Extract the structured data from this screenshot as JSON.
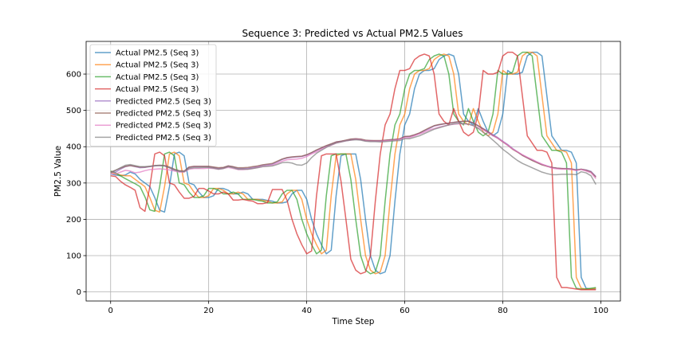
{
  "chart_data": {
    "type": "line",
    "title": "Sequence 3: Predicted vs Actual PM2.5 Values",
    "xlabel": "Time Step",
    "ylabel": "PM2.5 Value",
    "xlim": [
      -5,
      104
    ],
    "ylim": [
      -25,
      690
    ],
    "xticks": [
      0,
      20,
      40,
      60,
      80,
      100
    ],
    "yticks": [
      0,
      100,
      200,
      300,
      400,
      500,
      600
    ],
    "grid": true,
    "legend_position": "top-left",
    "series": [
      {
        "name": "Actual PM2.5 (Seq 3)",
        "color": "#1f77b4",
        "y": [
          325,
          322,
          320,
          322,
          330,
          325,
          310,
          300,
          290,
          260,
          225,
          220,
          290,
          380,
          385,
          375,
          300,
          295,
          275,
          260,
          260,
          265,
          285,
          285,
          280,
          270,
          270,
          275,
          270,
          255,
          255,
          255,
          252,
          250,
          245,
          245,
          248,
          270,
          280,
          280,
          255,
          200,
          160,
          130,
          105,
          115,
          265,
          375,
          380,
          380,
          380,
          310,
          200,
          100,
          60,
          50,
          55,
          100,
          250,
          380,
          460,
          490,
          560,
          600,
          610,
          610,
          615,
          640,
          650,
          655,
          650,
          600,
          490,
          470,
          460,
          505,
          470,
          440,
          430,
          440,
          490,
          610,
          600,
          600,
          605,
          650,
          660,
          660,
          650,
          540,
          430,
          410,
          390,
          390,
          385,
          355,
          40,
          10,
          8,
          8
        ]
      },
      {
        "name": "Actual PM2.5 (Seq 3)",
        "color": "#ff7f0e",
        "y": [
          330,
          325,
          322,
          320,
          320,
          310,
          300,
          290,
          260,
          225,
          220,
          290,
          380,
          385,
          375,
          300,
          295,
          275,
          260,
          260,
          265,
          285,
          285,
          280,
          270,
          270,
          275,
          270,
          255,
          255,
          255,
          252,
          250,
          245,
          245,
          248,
          270,
          280,
          280,
          255,
          200,
          160,
          130,
          105,
          115,
          265,
          375,
          380,
          380,
          380,
          310,
          200,
          100,
          60,
          50,
          55,
          100,
          250,
          380,
          460,
          490,
          560,
          600,
          610,
          610,
          615,
          640,
          650,
          655,
          650,
          600,
          490,
          470,
          460,
          505,
          470,
          440,
          430,
          440,
          490,
          610,
          600,
          600,
          605,
          650,
          660,
          660,
          650,
          540,
          430,
          410,
          390,
          390,
          385,
          355,
          40,
          10,
          8,
          8,
          10
        ]
      },
      {
        "name": "Actual PM2.5 (Seq 3)",
        "color": "#2ca02c",
        "y": [
          333,
          328,
          320,
          312,
          305,
          298,
          290,
          262,
          226,
          222,
          290,
          380,
          385,
          375,
          300,
          295,
          275,
          260,
          260,
          265,
          285,
          285,
          280,
          270,
          270,
          275,
          270,
          255,
          255,
          255,
          252,
          250,
          245,
          245,
          248,
          270,
          280,
          280,
          255,
          200,
          160,
          130,
          105,
          115,
          265,
          375,
          380,
          380,
          380,
          310,
          200,
          100,
          60,
          50,
          55,
          100,
          250,
          380,
          460,
          490,
          560,
          600,
          610,
          610,
          615,
          640,
          650,
          655,
          650,
          600,
          490,
          470,
          460,
          505,
          470,
          440,
          430,
          440,
          490,
          610,
          600,
          600,
          605,
          650,
          660,
          660,
          650,
          540,
          430,
          410,
          390,
          390,
          385,
          355,
          40,
          10,
          8,
          8,
          10,
          12
        ]
      },
      {
        "name": "Actual PM2.5 (Seq 3)",
        "color": "#d62728",
        "y": [
          320,
          318,
          305,
          295,
          288,
          280,
          232,
          222,
          290,
          380,
          385,
          375,
          300,
          295,
          275,
          258,
          258,
          263,
          285,
          285,
          278,
          270,
          270,
          275,
          270,
          253,
          253,
          255,
          252,
          250,
          243,
          243,
          246,
          282,
          282,
          282,
          252,
          200,
          160,
          130,
          105,
          113,
          265,
          375,
          380,
          380,
          380,
          305,
          200,
          90,
          60,
          50,
          55,
          100,
          250,
          380,
          460,
          490,
          560,
          610,
          610,
          615,
          640,
          650,
          655,
          650,
          600,
          490,
          470,
          460,
          505,
          470,
          440,
          430,
          440,
          490,
          610,
          600,
          600,
          605,
          650,
          660,
          660,
          650,
          540,
          430,
          410,
          390,
          390,
          385,
          355,
          40,
          12,
          12,
          10,
          8,
          6,
          6,
          6,
          6
        ]
      },
      {
        "name": "Predicted PM2.5 (Seq 3)",
        "color": "#9467bd",
        "y": [
          330,
          330,
          338,
          345,
          348,
          345,
          342,
          343,
          345,
          347,
          348,
          347,
          342,
          336,
          333,
          332,
          343,
          345,
          345,
          345,
          345,
          343,
          340,
          342,
          347,
          344,
          340,
          340,
          340,
          343,
          345,
          349,
          350,
          352,
          358,
          365,
          369,
          371,
          372,
          373,
          377,
          383,
          390,
          396,
          402,
          407,
          413,
          415,
          417,
          420,
          422,
          420,
          417,
          417,
          416,
          416,
          417,
          419,
          420,
          421,
          428,
          428,
          432,
          437,
          444,
          450,
          457,
          460,
          463,
          465,
          467,
          468,
          470,
          470,
          466,
          458,
          450,
          442,
          433,
          425,
          415,
          406,
          395,
          386,
          377,
          370,
          363,
          357,
          351,
          347,
          343,
          341,
          340,
          340,
          339,
          336,
          338,
          336,
          332,
          318
        ]
      },
      {
        "name": "Predicted PM2.5 (Seq 3)",
        "color": "#8c564b",
        "y": [
          330,
          335,
          341,
          346,
          348,
          346,
          344,
          344,
          346,
          348,
          349,
          348,
          344,
          338,
          334,
          333,
          344,
          346,
          346,
          346,
          346,
          344,
          342,
          343,
          347,
          345,
          342,
          342,
          343,
          345,
          347,
          350,
          352,
          354,
          360,
          366,
          370,
          372,
          373,
          374,
          378,
          384,
          391,
          397,
          403,
          408,
          413,
          415,
          418,
          421,
          422,
          421,
          418,
          417,
          417,
          417,
          418,
          419,
          420,
          422,
          428,
          429,
          433,
          438,
          445,
          452,
          458,
          461,
          463,
          465,
          467,
          469,
          470,
          470,
          465,
          457,
          449,
          440,
          431,
          423,
          413,
          404,
          393,
          385,
          376,
          369,
          362,
          356,
          350,
          346,
          343,
          341,
          340,
          339,
          338,
          336,
          338,
          335,
          330,
          316
        ]
      },
      {
        "name": "Predicted PM2.5 (Seq 3)",
        "color": "#e377c2",
        "y": [
          325,
          325,
          330,
          335,
          333,
          328,
          330,
          334,
          337,
          338,
          339,
          338,
          336,
          333,
          330,
          330,
          338,
          340,
          340,
          340,
          341,
          340,
          338,
          340,
          343,
          340,
          337,
          337,
          338,
          340,
          343,
          345,
          347,
          349,
          354,
          360,
          364,
          365,
          366,
          368,
          373,
          380,
          386,
          393,
          399,
          404,
          410,
          413,
          416,
          418,
          420,
          419,
          416,
          415,
          415,
          415,
          416,
          417,
          418,
          420,
          425,
          425,
          430,
          435,
          440,
          446,
          450,
          454,
          457,
          460,
          462,
          463,
          463,
          462,
          458,
          452,
          446,
          438,
          430,
          423,
          414,
          404,
          394,
          386,
          378,
          371,
          365,
          358,
          352,
          347,
          341,
          339,
          338,
          338,
          337,
          334,
          337,
          333,
          328,
          312
        ]
      },
      {
        "name": "Predicted PM2.5 (Seq 3)",
        "color": "#7f7f7f",
        "y": [
          328,
          335,
          342,
          349,
          351,
          348,
          345,
          345,
          346,
          348,
          348,
          347,
          342,
          336,
          332,
          331,
          340,
          342,
          342,
          343,
          343,
          341,
          338,
          340,
          345,
          342,
          338,
          338,
          338,
          340,
          342,
          345,
          346,
          347,
          351,
          356,
          357,
          355,
          350,
          349,
          355,
          370,
          382,
          390,
          398,
          405,
          410,
          413,
          416,
          418,
          419,
          418,
          415,
          414,
          414,
          413,
          414,
          415,
          416,
          417,
          422,
          422,
          426,
          430,
          436,
          442,
          448,
          452,
          456,
          460,
          463,
          464,
          464,
          462,
          458,
          450,
          440,
          430,
          418,
          406,
          393,
          383,
          372,
          362,
          354,
          348,
          342,
          336,
          330,
          326,
          323,
          323,
          324,
          324,
          324,
          323,
          331,
          328,
          320,
          296
        ]
      }
    ]
  }
}
